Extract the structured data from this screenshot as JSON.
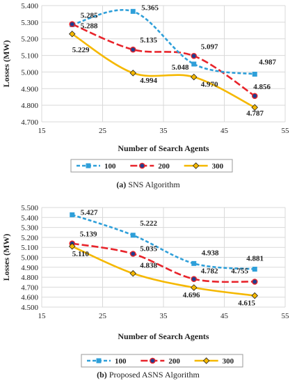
{
  "colors": {
    "series_100": "#2e9fd9",
    "series_200": "#e8242b",
    "series_300": "#f5b800",
    "grid": "#d9d9d9"
  },
  "chart_data": [
    {
      "type": "line",
      "caption_letter": "(a)",
      "caption_text": " SNS Algorithm",
      "xlabel": "Number of Search Agents",
      "ylabel": "Losses (MW)",
      "xlim": [
        15,
        55
      ],
      "ylim": [
        4.7,
        5.4
      ],
      "xticks": [
        "15",
        "25",
        "35",
        "45",
        "55"
      ],
      "yticks": [
        "4.700",
        "4.800",
        "4.900",
        "5.000",
        "5.100",
        "5.200",
        "5.300",
        "5.400"
      ],
      "grid": true,
      "legend_position": "bottom",
      "series": [
        {
          "name": "100",
          "x": [
            20,
            30,
            40,
            50
          ],
          "values": [
            5.285,
            5.365,
            5.048,
            4.987
          ],
          "labels": [
            "5.285",
            "5.365",
            "5.048",
            "4.987"
          ]
        },
        {
          "name": "200",
          "x": [
            20,
            30,
            40,
            50
          ],
          "values": [
            5.288,
            5.135,
            5.097,
            4.856
          ],
          "labels": [
            "5.288",
            "5.135",
            "5.097",
            "4.856"
          ]
        },
        {
          "name": "300",
          "x": [
            20,
            30,
            40,
            50
          ],
          "values": [
            5.229,
            4.994,
            4.97,
            4.787
          ],
          "labels": [
            "5.229",
            "4.994",
            "4.970",
            "4.787"
          ]
        }
      ]
    },
    {
      "type": "line",
      "caption_letter": "(b)",
      "caption_text": " Proposed ASNS Algorithm",
      "xlabel": "Number of Search Agents",
      "ylabel": "Losses (MW)",
      "xlim": [
        15,
        55
      ],
      "ylim": [
        4.5,
        5.5
      ],
      "xticks": [
        "15",
        "25",
        "35",
        "45",
        "55"
      ],
      "yticks": [
        "4.500",
        "4.600",
        "4.700",
        "4.800",
        "4.900",
        "5.000",
        "5.100",
        "5.200",
        "5.300",
        "5.400",
        "5.500"
      ],
      "grid": true,
      "legend_position": "bottom",
      "series": [
        {
          "name": "100",
          "x": [
            20,
            30,
            40,
            50
          ],
          "values": [
            5.427,
            5.222,
            4.938,
            4.881
          ],
          "labels": [
            "5.427",
            "5.222",
            "4.938",
            "4.881"
          ]
        },
        {
          "name": "200",
          "x": [
            20,
            30,
            40,
            50
          ],
          "values": [
            5.139,
            5.035,
            4.782,
            4.755
          ],
          "labels": [
            "5.139",
            "5.035",
            "4.782",
            "4.755"
          ]
        },
        {
          "name": "300",
          "x": [
            20,
            30,
            40,
            50
          ],
          "values": [
            5.11,
            4.838,
            4.696,
            4.615
          ],
          "labels": [
            "5.110",
            "4.838",
            "4.696",
            "4.615"
          ]
        }
      ]
    }
  ]
}
